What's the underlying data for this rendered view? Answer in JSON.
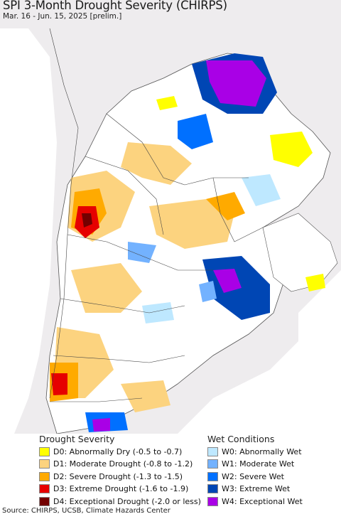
{
  "title": "SPI 3-Month Drought Severity (CHIRPS)",
  "subtitle": "Mar. 16 - Jun. 15, 2025 [prelim.]",
  "legend": {
    "drought_title": "Drought Severity",
    "wet_title": "Wet Conditions",
    "drought_items": [
      {
        "label": "D0: Abnormally Dry (-0.5 to -0.7)",
        "color": "#ffff00"
      },
      {
        "label": "D1: Moderate Drought (-0.8 to -1.2)",
        "color": "#fcd37f"
      },
      {
        "label": "D2: Severe Drought (-1.3 to -1.5)",
        "color": "#ffaa00"
      },
      {
        "label": "D3: Extreme Drought (-1.6 to -1.9)",
        "color": "#e60000"
      },
      {
        "label": "D4: Exceptional Drought (-2.0 or less)",
        "color": "#730000"
      }
    ],
    "wet_items": [
      {
        "label": "W0: Abnormally Wet",
        "color": "#bee8ff"
      },
      {
        "label": "W1: Moderate Wet",
        "color": "#73b2ff"
      },
      {
        "label": "W2: Severe Wet",
        "color": "#0070ff"
      },
      {
        "label": "W3: Extreme Wet",
        "color": "#0046b4"
      },
      {
        "label": "W4: Exceptional Wet",
        "color": "#a900e6"
      }
    ]
  },
  "source": "Source: CHIRPS, UCSB, Climate Hazards Center"
}
